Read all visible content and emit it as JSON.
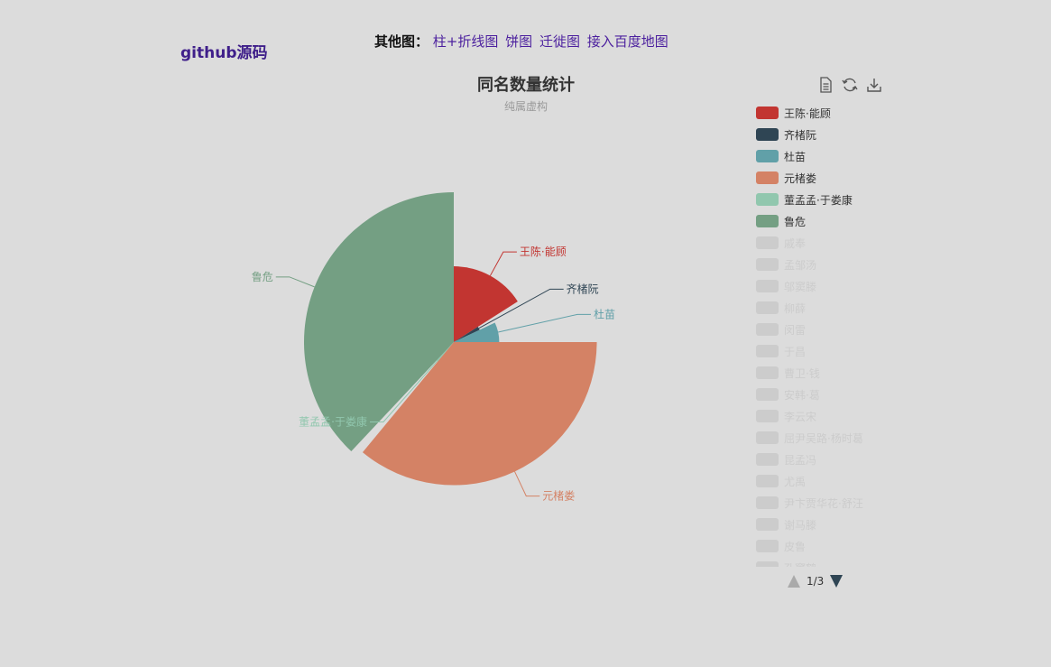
{
  "header": {
    "github_label": "github源码",
    "other_label": "其他图：",
    "links": [
      "柱+折线图",
      "饼图",
      "迁徙图",
      "接入百度地图"
    ]
  },
  "chart_data": {
    "type": "pie",
    "rose_type": "radius",
    "title": "同名数量统计",
    "subtitle": "纯属虚构",
    "visible_slices": [
      {
        "name": "王陈·能顾",
        "value": 16,
        "color": "#c23531"
      },
      {
        "name": "齐楮阮",
        "value": 2,
        "color": "#2f4554"
      },
      {
        "name": "杜苗",
        "value": 7,
        "color": "#61a0a8"
      },
      {
        "name": "元楮娄",
        "value": 36,
        "color": "#d48265"
      },
      {
        "name": "董孟孟·于娄康",
        "value": 1,
        "color": "#91c7ae"
      },
      {
        "name": "鲁危",
        "value": 38,
        "color": "#749f83"
      }
    ],
    "legend": [
      {
        "name": "王陈·能顾",
        "color": "#c23531",
        "active": true
      },
      {
        "name": "齐楮阮",
        "color": "#2f4554",
        "active": true
      },
      {
        "name": "杜苗",
        "color": "#61a0a8",
        "active": true
      },
      {
        "name": "元楮娄",
        "color": "#d48265",
        "active": true
      },
      {
        "name": "董孟孟·于娄康",
        "color": "#91c7ae",
        "active": true
      },
      {
        "name": "鲁危",
        "color": "#749f83",
        "active": true
      },
      {
        "name": "戚奉",
        "color": "#ccc",
        "active": false
      },
      {
        "name": "孟邹汤",
        "color": "#ccc",
        "active": false
      },
      {
        "name": "邬窦滕",
        "color": "#ccc",
        "active": false
      },
      {
        "name": "柳薛",
        "color": "#ccc",
        "active": false
      },
      {
        "name": "闵雷",
        "color": "#ccc",
        "active": false
      },
      {
        "name": "于昌",
        "color": "#ccc",
        "active": false
      },
      {
        "name": "曹卫·钱",
        "color": "#ccc",
        "active": false
      },
      {
        "name": "安韩·葛",
        "color": "#ccc",
        "active": false
      },
      {
        "name": "李云宋",
        "color": "#ccc",
        "active": false
      },
      {
        "name": "屈尹吴路·杨时葛",
        "color": "#ccc",
        "active": false
      },
      {
        "name": "昆孟冯",
        "color": "#ccc",
        "active": false
      },
      {
        "name": "尤禹",
        "color": "#ccc",
        "active": false
      },
      {
        "name": "尹卞贾华花·舒汪",
        "color": "#ccc",
        "active": false
      },
      {
        "name": "谢马滕",
        "color": "#ccc",
        "active": false
      },
      {
        "name": "皮鲁",
        "color": "#ccc",
        "active": false
      },
      {
        "name": "孔窦鹤",
        "color": "#ccc",
        "active": false
      }
    ],
    "legend_page": "1/3"
  }
}
